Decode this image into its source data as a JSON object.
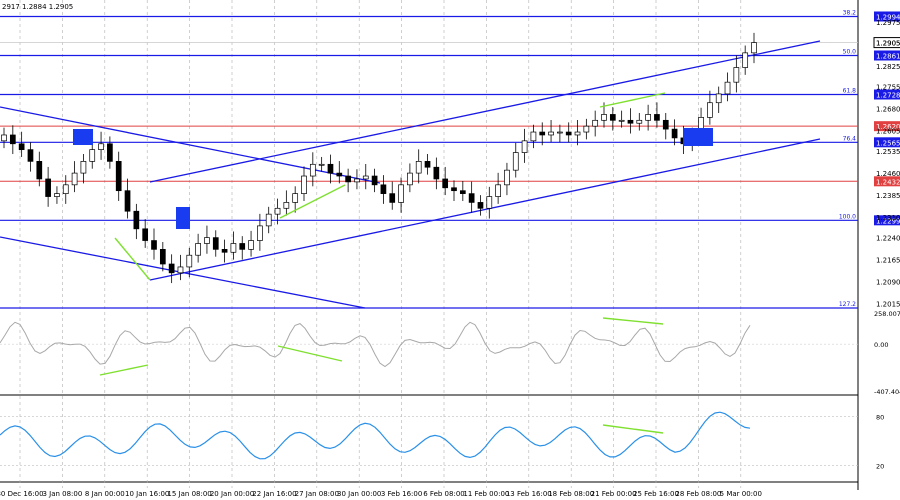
{
  "header": {
    "text": "2917 1.2884 1.2905"
  },
  "colors": {
    "level_line": "#1a1ae6",
    "red_line": "#e04040",
    "candle": "#000000",
    "divergence": "#7fe030",
    "cci_line": "#a8a8a8",
    "rsi_line": "#2a90e8",
    "grid": "#b0b0b0",
    "marker": "#1a3cf0"
  },
  "chart_data": [
    {
      "type": "candlestick",
      "panel": "price",
      "ylim": [
        1.2,
        1.304
      ],
      "price_ticks": [
        "1.2975",
        "1.2905",
        "1.2825",
        "1.2755",
        "1.2680",
        "1.2605",
        "1.2535",
        "1.2460",
        "1.2385",
        "1.2310",
        "1.2240",
        "1.2165",
        "1.2090",
        "1.2015"
      ],
      "x_tick_labels": [
        "30 Dec 16:00",
        "3 Jan 08:00",
        "8 Jan 00:00",
        "10 Jan 16:00",
        "15 Jan 08:00",
        "20 Jan 00:00",
        "22 Jan 16:00",
        "27 Jan 08:00",
        "30 Jan 00:00",
        "3 Feb 16:00",
        "6 Feb 08:00",
        "11 Feb 00:00",
        "13 Feb 16:00",
        "18 Feb 08:00",
        "21 Feb 00:00",
        "25 Feb 16:00",
        "28 Feb 08:00",
        "5 Mar 00:00"
      ],
      "fib_levels": [
        {
          "label": "38.2",
          "price": 1.2994,
          "tag": "1.2994"
        },
        {
          "label": "50.0",
          "price": 1.2861,
          "tag": "1.2861"
        },
        {
          "label": "61.8",
          "price": 1.2728,
          "tag": "1.2728"
        },
        {
          "label": "76.4",
          "price": 1.2565,
          "tag": "1.2565"
        },
        {
          "label": "100.0",
          "price": 1.2299,
          "tag": "1.2299"
        },
        {
          "label": "127.2",
          "price": 1.2,
          "tag": ""
        }
      ],
      "red_levels": [
        {
          "price": 1.262,
          "tag": "1.2620"
        },
        {
          "price": 1.2432,
          "tag": "1.2432"
        }
      ],
      "current_price": {
        "price": 1.2905,
        "tag": "1.2905"
      },
      "close_series": [
        1.259,
        1.256,
        1.254,
        1.25,
        1.244,
        1.238,
        1.239,
        1.242,
        1.246,
        1.25,
        1.254,
        1.256,
        1.25,
        1.24,
        1.233,
        1.227,
        1.223,
        1.22,
        1.215,
        1.212,
        1.214,
        1.218,
        1.222,
        1.224,
        1.22,
        1.219,
        1.222,
        1.22,
        1.223,
        1.228,
        1.232,
        1.234,
        1.236,
        1.239,
        1.245,
        1.249,
        1.249,
        1.246,
        1.245,
        1.243,
        1.244,
        1.245,
        1.242,
        1.239,
        1.236,
        1.242,
        1.246,
        1.25,
        1.248,
        1.244,
        1.241,
        1.24,
        1.239,
        1.236,
        1.234,
        1.238,
        1.242,
        1.247,
        1.253,
        1.257,
        1.26,
        1.259,
        1.26,
        1.26,
        1.259,
        1.26,
        1.262,
        1.264,
        1.266,
        1.264,
        1.264,
        1.263,
        1.264,
        1.266,
        1.264,
        1.261,
        1.258,
        1.256,
        1.259,
        1.265,
        1.27,
        1.273,
        1.277,
        1.282,
        1.287,
        1.2905
      ]
    },
    {
      "type": "line",
      "panel": "cci",
      "ylim": [
        -407.404,
        258.0074
      ],
      "tick_labels": [
        "258.0074",
        "0.00",
        "-407.404"
      ]
    },
    {
      "type": "line",
      "panel": "rsi",
      "ylim": [
        0,
        100
      ],
      "tick_labels": [
        "80",
        "20"
      ]
    }
  ]
}
